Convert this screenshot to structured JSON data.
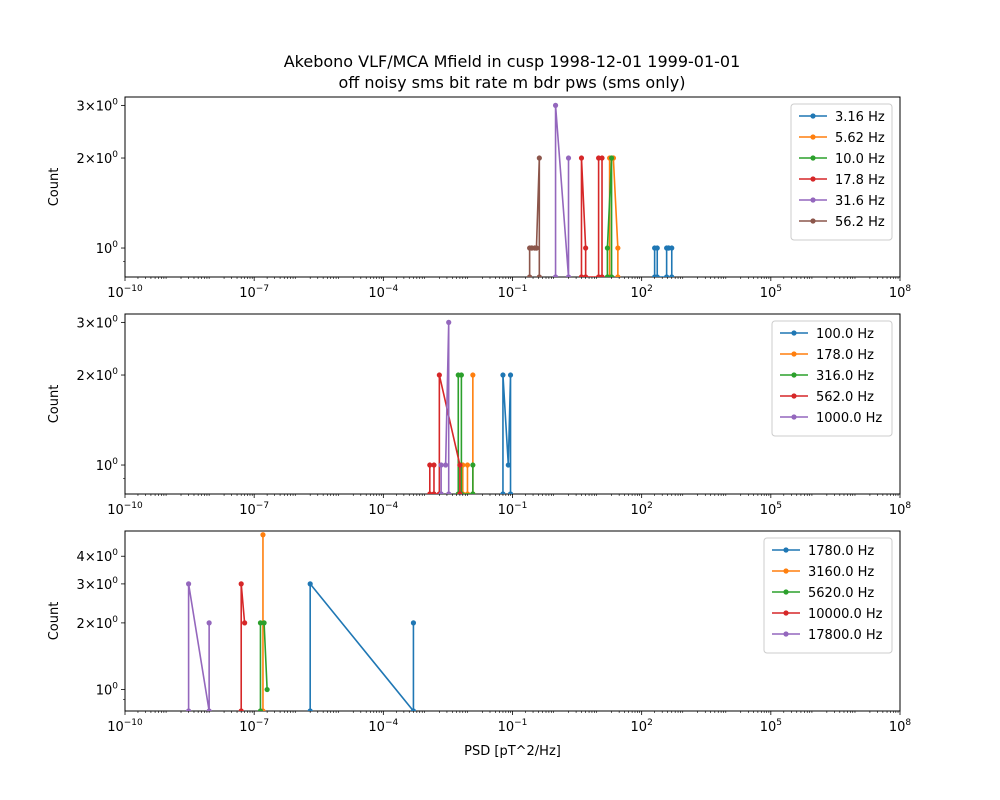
{
  "figure": {
    "title_line1": "Akebono VLF/MCA Mfield in cusp 1998-12-01 1999-01-01",
    "title_line2": "off noisy sms bit rate m bdr pws (sms only)"
  },
  "chart_data": [
    {
      "type": "line",
      "xscale": "log",
      "yscale": "log",
      "xlim": [
        1e-10,
        100000000.0
      ],
      "ylim": [
        0.8,
        3.2
      ],
      "xticks": [
        1e-10,
        1e-07,
        0.0001,
        0.1,
        100.0,
        100000.0,
        100000000.0
      ],
      "xtick_labels": [
        "10^-10",
        "10^-7",
        "10^-4",
        "10^-1",
        "10^2",
        "10^5",
        "10^8"
      ],
      "yticks": [
        1,
        2,
        3
      ],
      "ytick_labels": [
        "10^0",
        "2×10^0",
        "3×10^0"
      ],
      "ylabel": "Count",
      "xlabel": "",
      "legend_position": "top-right",
      "series": [
        {
          "name": "3.16 Hz",
          "color": "#1f77b4",
          "x": [
            200,
            200,
            230,
            230,
            380,
            380,
            420,
            420,
            500,
            500
          ],
          "y": [
            0.8,
            1,
            1,
            0.8,
            0.8,
            1,
            1,
            1,
            1,
            0.8
          ]
        },
        {
          "name": "5.62 Hz",
          "color": "#ff7f0e",
          "x": [
            18,
            18,
            22,
            22,
            28,
            28
          ],
          "y": [
            0.8,
            2,
            2,
            2,
            1,
            0.8
          ]
        },
        {
          "name": "10.0 Hz",
          "color": "#2ca02c",
          "x": [
            16,
            16,
            20,
            20
          ],
          "y": [
            0.8,
            1,
            2,
            0.8
          ]
        },
        {
          "name": "17.8 Hz",
          "color": "#d62728",
          "x": [
            10,
            10,
            12,
            12,
            4,
            4,
            5,
            5
          ],
          "y": [
            0.8,
            2,
            2,
            0.8,
            0.8,
            2,
            1,
            0.8
          ]
        },
        {
          "name": "31.6 Hz",
          "color": "#9467bd",
          "x": [
            1,
            1,
            2,
            2
          ],
          "y": [
            0.8,
            3,
            0.8,
            2
          ]
        },
        {
          "name": "56.2 Hz",
          "color": "#8c564b",
          "x": [
            0.25,
            0.25,
            0.28,
            0.28,
            0.33,
            0.33,
            0.36,
            0.36,
            0.42,
            0.42
          ],
          "y": [
            0.8,
            1,
            1,
            1,
            1,
            1,
            1,
            1,
            2,
            0.8
          ]
        }
      ]
    },
    {
      "type": "line",
      "xscale": "log",
      "yscale": "log",
      "xlim": [
        1e-10,
        100000000.0
      ],
      "ylim": [
        0.8,
        3.2
      ],
      "xticks": [
        1e-10,
        1e-07,
        0.0001,
        0.1,
        100.0,
        100000.0,
        100000000.0
      ],
      "xtick_labels": [
        "10^-10",
        "10^-7",
        "10^-4",
        "10^-1",
        "10^2",
        "10^5",
        "10^8"
      ],
      "yticks": [
        1,
        2,
        3
      ],
      "ytick_labels": [
        "10^0",
        "2×10^0",
        "3×10^0"
      ],
      "ylabel": "Count",
      "xlabel": "",
      "legend_position": "top-right",
      "series": [
        {
          "name": "100.0 Hz",
          "color": "#1f77b4",
          "x": [
            0.06,
            0.06,
            0.08,
            0.09,
            0.09
          ],
          "y": [
            0.8,
            2,
            1,
            2,
            0.8
          ]
        },
        {
          "name": "178.0 Hz",
          "color": "#ff7f0e",
          "x": [
            0.007,
            0.007,
            0.009,
            0.009,
            0.012,
            0.012
          ],
          "y": [
            0.8,
            1,
            1,
            0.8,
            0.8,
            2
          ]
        },
        {
          "name": "316.0 Hz",
          "color": "#2ca02c",
          "x": [
            0.0055,
            0.0055,
            0.0065,
            0.0065,
            0.012,
            0.012
          ],
          "y": [
            0.8,
            2,
            2,
            0.8,
            0.8,
            1
          ]
        },
        {
          "name": "562.0 Hz",
          "color": "#d62728",
          "x": [
            0.0012,
            0.0012,
            0.0015,
            0.0015,
            0.002,
            0.002,
            0.006,
            0.006
          ],
          "y": [
            0.8,
            1,
            1,
            0.8,
            0.8,
            2,
            1,
            0.8
          ]
        },
        {
          "name": "1000.0 Hz",
          "color": "#9467bd",
          "x": [
            0.0022,
            0.0022,
            0.0028,
            0.0033,
            0.0033
          ],
          "y": [
            0.8,
            1,
            1,
            3,
            0.8
          ]
        }
      ]
    },
    {
      "type": "line",
      "xscale": "log",
      "yscale": "log",
      "xlim": [
        1e-10,
        100000000.0
      ],
      "ylim": [
        0.8,
        5.2
      ],
      "xticks": [
        1e-10,
        1e-07,
        0.0001,
        0.1,
        100.0,
        100000.0,
        100000000.0
      ],
      "xtick_labels": [
        "10^-10",
        "10^-7",
        "10^-4",
        "10^-1",
        "10^2",
        "10^5",
        "10^8"
      ],
      "yticks": [
        1,
        2,
        3,
        4
      ],
      "ytick_labels": [
        "10^0",
        "2×10^0",
        "3×10^0",
        "4×10^0"
      ],
      "ylabel": "Count",
      "xlabel": "PSD [pT^2/Hz]",
      "legend_position": "top-right",
      "series": [
        {
          "name": "1780.0 Hz",
          "color": "#1f77b4",
          "x": [
            2e-06,
            2e-06,
            0.0005,
            0.0005
          ],
          "y": [
            0.8,
            3,
            0.8,
            2
          ]
        },
        {
          "name": "3160.0 Hz",
          "color": "#ff7f0e",
          "x": [
            1.6e-07,
            1.6e-07
          ],
          "y": [
            0.8,
            5
          ]
        },
        {
          "name": "5620.0 Hz",
          "color": "#2ca02c",
          "x": [
            1.4e-07,
            1.4e-07,
            1.7e-07,
            2e-07
          ],
          "y": [
            0.8,
            2,
            2,
            1
          ]
        },
        {
          "name": "10000.0 Hz",
          "color": "#d62728",
          "x": [
            5e-08,
            5e-08,
            6e-08
          ],
          "y": [
            0.8,
            3,
            2
          ]
        },
        {
          "name": "17800.0 Hz",
          "color": "#9467bd",
          "x": [
            3e-09,
            3e-09,
            9e-09,
            9e-09
          ],
          "y": [
            0.8,
            3,
            0.8,
            2
          ]
        }
      ]
    }
  ]
}
